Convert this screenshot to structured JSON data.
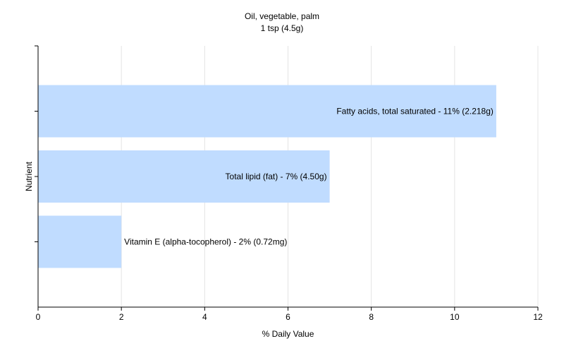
{
  "chart_data": {
    "type": "bar",
    "orientation": "horizontal",
    "title": "Oil, vegetable, palm",
    "subtitle": "1 tsp (4.5g)",
    "xlabel": "% Daily Value",
    "ylabel": "Nutrient",
    "xlim": [
      0,
      12
    ],
    "xticks": [
      0,
      2,
      4,
      6,
      8,
      10,
      12
    ],
    "grid": "vertical",
    "bar_color": "#c0dcff",
    "categories": [
      "Fatty acids, total saturated",
      "Total lipid (fat)",
      "Vitamin E (alpha-tocopherol)"
    ],
    "values": [
      11,
      7,
      2
    ],
    "data_labels": [
      "Fatty acids, total saturated - 11% (2.218g)",
      "Total lipid (fat) - 7% (4.50g)",
      "Vitamin E (alpha-tocopherol) - 2% (0.72mg)"
    ]
  }
}
